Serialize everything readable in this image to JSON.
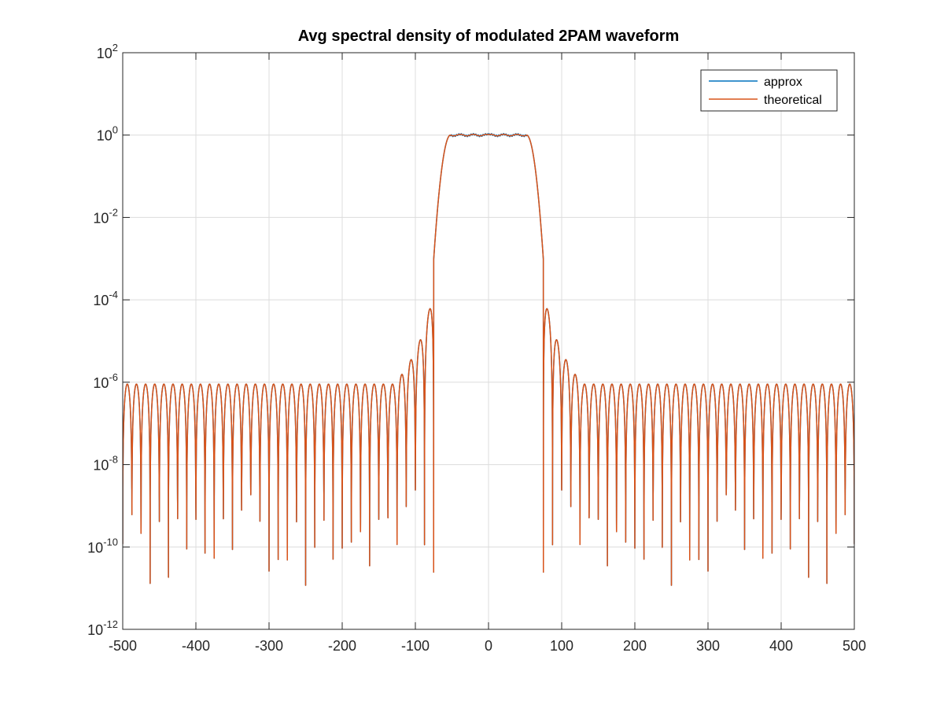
{
  "chart_data": {
    "type": "line",
    "title": "Avg spectral density of modulated 2PAM waveform",
    "xlabel": "",
    "ylabel": "",
    "xlim": [
      -500,
      500
    ],
    "ylim": [
      1e-12,
      100
    ],
    "yscale": "log",
    "grid": true,
    "legend_position": "top-right",
    "x_ticks": [
      -500,
      -400,
      -300,
      -200,
      -100,
      0,
      100,
      200,
      300,
      400,
      500
    ],
    "x_tick_labels": [
      "-500",
      "-400",
      "-300",
      "-200",
      "-100",
      "0",
      "100",
      "200",
      "300",
      "400",
      "500"
    ],
    "y_ticks": [
      {
        "base": "10",
        "exp": "2"
      },
      {
        "base": "10",
        "exp": "0"
      },
      {
        "base": "10",
        "exp": "-2"
      },
      {
        "base": "10",
        "exp": "-4"
      },
      {
        "base": "10",
        "exp": "-6"
      },
      {
        "base": "10",
        "exp": "-8"
      },
      {
        "base": "10",
        "exp": "-10"
      },
      {
        "base": "10",
        "exp": "-12"
      }
    ],
    "y_tick_exponents": [
      2,
      0,
      -2,
      -4,
      -6,
      -8,
      -10,
      -12
    ],
    "model": {
      "passband_edge": 75,
      "null_spacing": 12.5,
      "level_at_edge": 0.0002,
      "level_at_500": 1e-06,
      "deep_null_floor": 1e-11
    },
    "series": [
      {
        "name": "approx",
        "color": "#0072BD",
        "x": [
          -500,
          -250,
          -100,
          -80,
          -70,
          -50,
          -20,
          0,
          20,
          50,
          70,
          80,
          100,
          250,
          500
        ],
        "y": [
          1e-06,
          4e-06,
          2.5e-05,
          0.0002,
          0.05,
          0.6,
          1.0,
          0.95,
          1.0,
          0.6,
          0.05,
          0.0002,
          2.5e-05,
          4e-06,
          1e-06
        ]
      },
      {
        "name": "theoretical",
        "color": "#D95319",
        "x": [
          -500,
          -250,
          -100,
          -80,
          -70,
          -50,
          -20,
          0,
          20,
          50,
          70,
          80,
          100,
          250,
          500
        ],
        "y": [
          1e-06,
          4e-06,
          2.5e-05,
          0.0002,
          0.05,
          0.6,
          1.0,
          1.0,
          1.0,
          0.6,
          0.05,
          0.0002,
          2.5e-05,
          4e-06,
          1e-06
        ]
      }
    ]
  }
}
